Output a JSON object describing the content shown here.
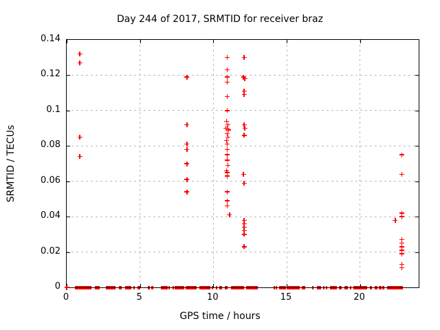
{
  "title": "Day 244 of 2017, SRMTID for receiver braz",
  "colors": {
    "marker": "#ff0000",
    "grid": "#b9b9b9",
    "axis": "#000000",
    "background": "#ffffff"
  },
  "chart_data": {
    "type": "scatter",
    "title": "Day 244 of 2017, SRMTID for receiver braz",
    "xlabel": "GPS time / hours",
    "ylabel": "SRMTID / TECUs",
    "xlim": [
      0,
      24
    ],
    "ylim": [
      0,
      0.14
    ],
    "grid": true,
    "legend": "none",
    "marker": "plus",
    "marker_color": "#ff0000",
    "xticks": [
      {
        "v": 0,
        "label": "0"
      },
      {
        "v": 5,
        "label": "5"
      },
      {
        "v": 10,
        "label": "10"
      },
      {
        "v": 15,
        "label": "15"
      },
      {
        "v": 20,
        "label": "20"
      }
    ],
    "yticks": [
      {
        "v": 0,
        "label": "0"
      },
      {
        "v": 0.02,
        "label": "0.02"
      },
      {
        "v": 0.04,
        "label": "0.04"
      },
      {
        "v": 0.06,
        "label": "0.06"
      },
      {
        "v": 0.08,
        "label": "0.08"
      },
      {
        "v": 0.1,
        "label": "0.1"
      },
      {
        "v": 0.12,
        "label": "0.12"
      },
      {
        "v": 0.14,
        "label": "0.14"
      }
    ],
    "points": [
      [
        0.0,
        0.0
      ],
      [
        0.9,
        0.132
      ],
      [
        0.9,
        0.127
      ],
      [
        0.9,
        0.085
      ],
      [
        0.9,
        0.074
      ],
      [
        8.2,
        0.119
      ],
      [
        8.2,
        0.092
      ],
      [
        8.2,
        0.081
      ],
      [
        8.2,
        0.078
      ],
      [
        8.2,
        0.07
      ],
      [
        8.2,
        0.061
      ],
      [
        8.2,
        0.054
      ],
      [
        10.95,
        0.13
      ],
      [
        10.95,
        0.123
      ],
      [
        10.95,
        0.119
      ],
      [
        10.95,
        0.116
      ],
      [
        10.95,
        0.108
      ],
      [
        10.95,
        0.1
      ],
      [
        10.9,
        0.094
      ],
      [
        11.0,
        0.092
      ],
      [
        10.85,
        0.09
      ],
      [
        10.95,
        0.09
      ],
      [
        11.05,
        0.089
      ],
      [
        10.95,
        0.087
      ],
      [
        11.0,
        0.085
      ],
      [
        10.9,
        0.083
      ],
      [
        10.95,
        0.081
      ],
      [
        10.95,
        0.078
      ],
      [
        10.95,
        0.075
      ],
      [
        10.95,
        0.072
      ],
      [
        11.0,
        0.069
      ],
      [
        10.9,
        0.066
      ],
      [
        10.95,
        0.065
      ],
      [
        10.95,
        0.063
      ],
      [
        10.95,
        0.054
      ],
      [
        10.95,
        0.049
      ],
      [
        10.95,
        0.046
      ],
      [
        11.1,
        0.041
      ],
      [
        12.1,
        0.13
      ],
      [
        12.05,
        0.119
      ],
      [
        12.15,
        0.118
      ],
      [
        12.1,
        0.111
      ],
      [
        12.1,
        0.109
      ],
      [
        12.1,
        0.092
      ],
      [
        12.15,
        0.09
      ],
      [
        12.1,
        0.086
      ],
      [
        12.05,
        0.064
      ],
      [
        12.1,
        0.059
      ],
      [
        12.1,
        0.038
      ],
      [
        12.1,
        0.036
      ],
      [
        12.1,
        0.034
      ],
      [
        12.1,
        0.032
      ],
      [
        12.1,
        0.03
      ],
      [
        12.1,
        0.023
      ],
      [
        22.85,
        0.075
      ],
      [
        22.85,
        0.064
      ],
      [
        22.85,
        0.042
      ],
      [
        22.85,
        0.04
      ],
      [
        22.4,
        0.038
      ],
      [
        22.85,
        0.027
      ],
      [
        22.85,
        0.025
      ],
      [
        22.85,
        0.023
      ],
      [
        22.85,
        0.021
      ],
      [
        22.85,
        0.019
      ],
      [
        22.85,
        0.013
      ],
      [
        22.85,
        0.011
      ]
    ],
    "zero_segments": [
      [
        0.55,
        1.7
      ],
      [
        1.9,
        2.25
      ],
      [
        2.65,
        3.35
      ],
      [
        3.55,
        3.75
      ],
      [
        4.0,
        4.4
      ],
      [
        4.55,
        4.65
      ],
      [
        4.85,
        5.0
      ],
      [
        5.55,
        5.65
      ],
      [
        5.75,
        5.9
      ],
      [
        6.4,
        6.9
      ],
      [
        6.95,
        7.05
      ],
      [
        7.2,
        7.3
      ],
      [
        7.35,
        8.0
      ],
      [
        8.1,
        8.85
      ],
      [
        9.05,
        9.8
      ],
      [
        9.9,
        10.0
      ],
      [
        10.15,
        10.25
      ],
      [
        10.4,
        10.6
      ],
      [
        10.8,
        10.95
      ],
      [
        11.2,
        12.1
      ],
      [
        12.25,
        13.05
      ],
      [
        14.1,
        14.2
      ],
      [
        14.27,
        14.35
      ],
      [
        14.5,
        14.95
      ],
      [
        15.0,
        15.9
      ],
      [
        16.05,
        16.25
      ],
      [
        16.75,
        16.85
      ],
      [
        17.05,
        17.35
      ],
      [
        17.5,
        17.6
      ],
      [
        17.68,
        17.76
      ],
      [
        17.95,
        18.4
      ],
      [
        18.55,
        18.75
      ],
      [
        18.95,
        19.15
      ],
      [
        19.3,
        19.4
      ],
      [
        19.55,
        20.5
      ],
      [
        20.65,
        20.8
      ],
      [
        21.0,
        21.2
      ],
      [
        21.3,
        21.45
      ],
      [
        21.5,
        21.65
      ],
      [
        21.85,
        22.9
      ]
    ]
  }
}
